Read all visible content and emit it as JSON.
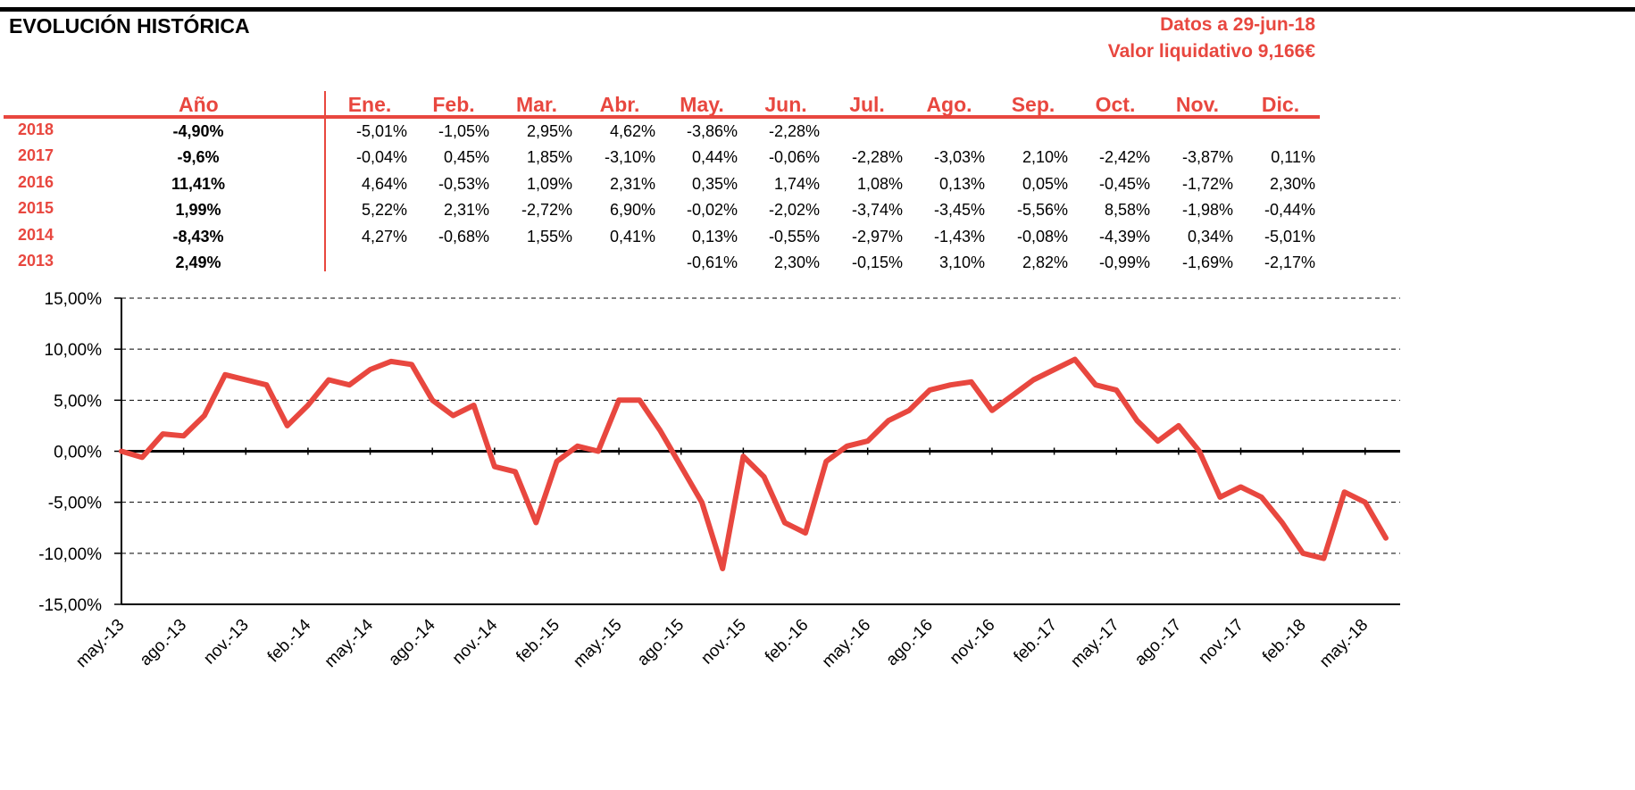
{
  "header": {
    "title": "EVOLUCIÓN HISTÓRICA",
    "date_label": "Datos a 29-jun-18",
    "nav_label": "Valor liquidativo 9,166€"
  },
  "table": {
    "year_header": "Año",
    "months": [
      "Ene.",
      "Feb.",
      "Mar.",
      "Abr.",
      "May.",
      "Jun.",
      "Jul.",
      "Ago.",
      "Sep.",
      "Oct.",
      "Nov.",
      "Dic."
    ],
    "rows": [
      {
        "year": "2018",
        "total": "-4,90%",
        "values": [
          "-5,01%",
          "-1,05%",
          "2,95%",
          "4,62%",
          "-3,86%",
          "-2,28%",
          "",
          "",
          "",
          "",
          "",
          ""
        ]
      },
      {
        "year": "2017",
        "total": "-9,6%",
        "values": [
          "-0,04%",
          "0,45%",
          "1,85%",
          "-3,10%",
          "0,44%",
          "-0,06%",
          "-2,28%",
          "-3,03%",
          "2,10%",
          "-2,42%",
          "-3,87%",
          "0,11%"
        ]
      },
      {
        "year": "2016",
        "total": "11,41%",
        "values": [
          "4,64%",
          "-0,53%",
          "1,09%",
          "2,31%",
          "0,35%",
          "1,74%",
          "1,08%",
          "0,13%",
          "0,05%",
          "-0,45%",
          "-1,72%",
          "2,30%"
        ]
      },
      {
        "year": "2015",
        "total": "1,99%",
        "values": [
          "5,22%",
          "2,31%",
          "-2,72%",
          "6,90%",
          "-0,02%",
          "-2,02%",
          "-3,74%",
          "-3,45%",
          "-5,56%",
          "8,58%",
          "-1,98%",
          "-0,44%"
        ]
      },
      {
        "year": "2014",
        "total": "-8,43%",
        "values": [
          "4,27%",
          "-0,68%",
          "1,55%",
          "0,41%",
          "0,13%",
          "-0,55%",
          "-2,97%",
          "-1,43%",
          "-0,08%",
          "-4,39%",
          "0,34%",
          "-5,01%"
        ]
      },
      {
        "year": "2013",
        "total": "2,49%",
        "values": [
          "",
          "",
          "",
          "",
          "-0,61%",
          "2,30%",
          "-0,15%",
          "3,10%",
          "2,82%",
          "-0,99%",
          "-1,69%",
          "-2,17%"
        ]
      }
    ]
  },
  "chart_data": {
    "type": "line",
    "color": "#e8473f",
    "ylim": [
      -15,
      15
    ],
    "y_ticks": [
      15,
      10,
      5,
      0,
      -5,
      -10,
      -15
    ],
    "y_tick_labels": [
      "15,00%",
      "10,00%",
      "5,00%",
      "0,00%",
      "-5,00%",
      "-10,00%",
      "-15,00%"
    ],
    "x_tick_labels": [
      "may.-13",
      "ago.-13",
      "nov.-13",
      "feb.-14",
      "may.-14",
      "ago.-14",
      "nov.-14",
      "feb.-15",
      "may.-15",
      "ago.-15",
      "nov.-15",
      "feb.-16",
      "may.-16",
      "ago.-16",
      "nov.-16",
      "feb.-17",
      "may.-17",
      "ago.-17",
      "nov.-17",
      "feb.-18",
      "may.-18"
    ],
    "grid": true,
    "x_range": [
      "2013-05",
      "2018-06"
    ],
    "series": [
      {
        "x": [
          "2013-05",
          "2013-06",
          "2013-07",
          "2013-08",
          "2013-09",
          "2013-10",
          "2013-11",
          "2013-12",
          "2014-01",
          "2014-02",
          "2014-03",
          "2014-04",
          "2014-05",
          "2014-06",
          "2014-07",
          "2014-08",
          "2014-09",
          "2014-10",
          "2014-11",
          "2014-12",
          "2015-01",
          "2015-02",
          "2015-03",
          "2015-04",
          "2015-05",
          "2015-06",
          "2015-07",
          "2015-08",
          "2015-09",
          "2015-10",
          "2015-11",
          "2015-12",
          "2016-01",
          "2016-02",
          "2016-03",
          "2016-04",
          "2016-05",
          "2016-06",
          "2016-07",
          "2016-08",
          "2016-09",
          "2016-10",
          "2016-11",
          "2016-12",
          "2017-01",
          "2017-02",
          "2017-03",
          "2017-04",
          "2017-05",
          "2017-06",
          "2017-07",
          "2017-08",
          "2017-09",
          "2017-10",
          "2017-11",
          "2017-12",
          "2018-01",
          "2018-02",
          "2018-03",
          "2018-04",
          "2018-05",
          "2018-06"
        ],
        "values": [
          0.0,
          -0.6,
          1.7,
          1.5,
          3.5,
          7.5,
          7.0,
          6.5,
          2.5,
          4.5,
          7.0,
          6.5,
          8.0,
          8.8,
          8.5,
          5.0,
          3.5,
          4.5,
          -1.5,
          -2.0,
          -7.0,
          -1.0,
          0.5,
          0.0,
          5.0,
          5.0,
          2.0,
          -1.5,
          -5.0,
          -11.5,
          -0.5,
          -2.5,
          -7.0,
          -8.0,
          -1.0,
          0.5,
          1.0,
          3.0,
          4.0,
          6.0,
          6.5,
          6.8,
          4.0,
          5.5,
          7.0,
          8.0,
          9.0,
          6.5,
          6.0,
          3.0,
          1.0,
          2.5,
          0.0,
          -4.5,
          -3.5,
          -4.5,
          -7.0,
          -10.0,
          -10.5,
          -4.0,
          -5.0,
          -8.5
        ]
      }
    ]
  }
}
